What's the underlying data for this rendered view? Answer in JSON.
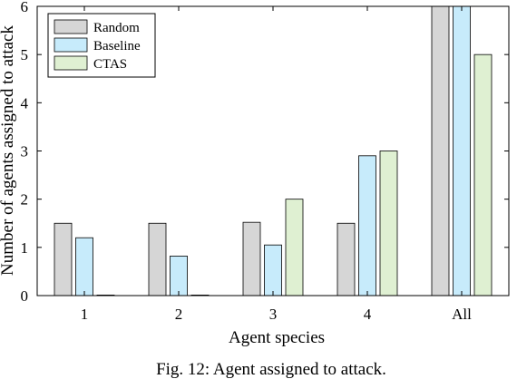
{
  "chart_data": {
    "type": "bar",
    "categories": [
      "1",
      "2",
      "3",
      "4",
      "All"
    ],
    "series": [
      {
        "name": "Random",
        "color": "#d6d6d6",
        "values": [
          1.5,
          1.5,
          1.52,
          1.5,
          6.0
        ]
      },
      {
        "name": "Baseline",
        "color": "#c7ebfb",
        "values": [
          1.2,
          0.82,
          1.05,
          2.9,
          6.0
        ]
      },
      {
        "name": "CTAS",
        "color": "#dff0d2",
        "values": [
          0.0,
          0.0,
          2.0,
          3.0,
          5.0
        ]
      }
    ],
    "xlabel": "Agent species",
    "ylabel": "Number of agents assigned to attack",
    "ylim": [
      0,
      6
    ],
    "yticks": [
      "0",
      "1",
      "2",
      "3",
      "4",
      "5",
      "6"
    ],
    "grid": false,
    "legend_position": "top-left"
  },
  "caption": "Fig. 12: Agent assigned to attack."
}
